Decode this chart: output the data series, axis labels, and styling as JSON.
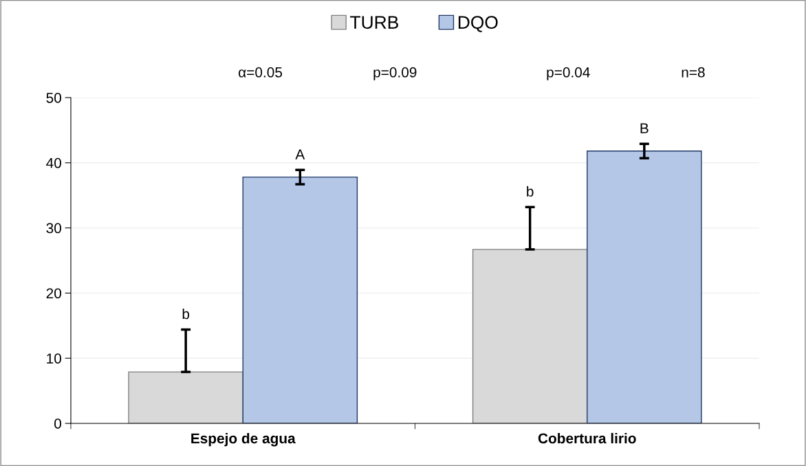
{
  "chart_data": {
    "type": "bar",
    "categories": [
      "Espejo de agua",
      "Cobertura lirio"
    ],
    "series": [
      {
        "name": "TURB",
        "color": "#d9d9d9",
        "values": [
          7.9,
          26.7
        ],
        "errors": [
          [
            7.9,
            14.4
          ],
          [
            26.7,
            33.2
          ]
        ]
      },
      {
        "name": "DQO",
        "color": "#b4c7e7",
        "values": [
          37.8,
          41.8
        ],
        "errors": [
          1.1,
          1.1
        ]
      }
    ],
    "ylim": [
      0,
      50
    ],
    "yticks": [
      0,
      10,
      20,
      30,
      40,
      50
    ],
    "grid": "y",
    "legend": "top",
    "annotations": [
      "α=0.05",
      "p=0.09",
      "p=0.04",
      "n=8",
      "b",
      "A",
      "b",
      "B"
    ]
  }
}
